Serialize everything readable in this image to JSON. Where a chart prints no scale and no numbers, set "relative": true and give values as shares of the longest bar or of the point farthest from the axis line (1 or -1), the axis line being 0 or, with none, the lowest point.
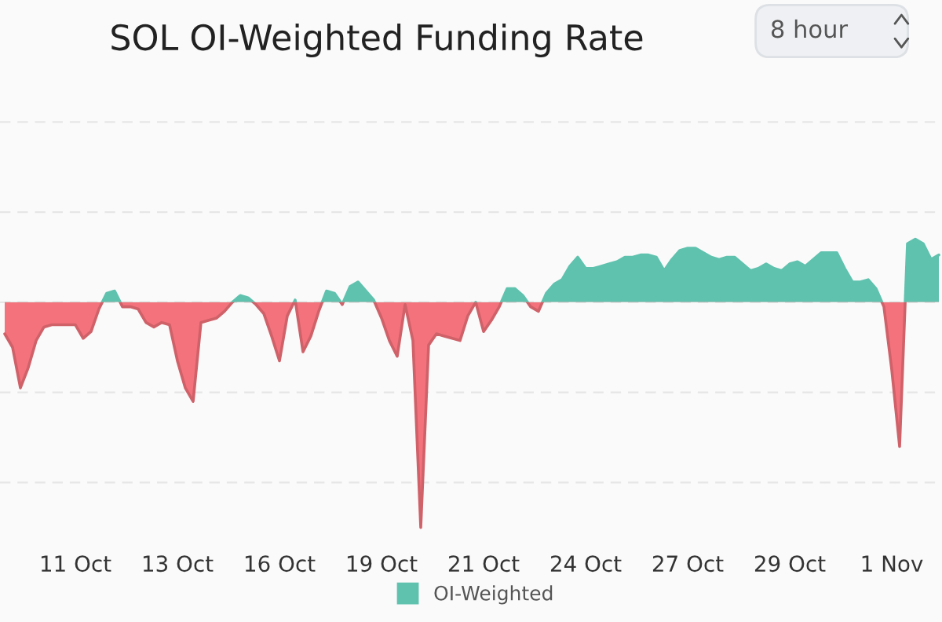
{
  "chart_data": {
    "type": "area",
    "title": "SOL OI-Weighted Funding Rate",
    "annotations": [
      "8 hour"
    ],
    "relative": true,
    "grid": "y",
    "legend": "bottom",
    "categories": [
      null,
      null,
      null,
      null,
      null,
      null,
      null,
      null,
      null,
      "11 Oct",
      null,
      null,
      null,
      null,
      null,
      null,
      null,
      null,
      null,
      null,
      null,
      null,
      "13 Oct",
      null,
      null,
      null,
      null,
      null,
      null,
      null,
      null,
      null,
      null,
      null,
      null,
      "16 Oct",
      null,
      null,
      null,
      null,
      null,
      null,
      null,
      null,
      null,
      null,
      null,
      null,
      "19 Oct",
      null,
      null,
      null,
      null,
      null,
      null,
      null,
      null,
      null,
      null,
      null,
      null,
      "21 Oct",
      null,
      null,
      null,
      null,
      null,
      null,
      null,
      null,
      null,
      null,
      null,
      null,
      "24 Oct",
      null,
      null,
      null,
      null,
      null,
      null,
      null,
      null,
      null,
      null,
      null,
      null,
      "27 Oct",
      null,
      null,
      null,
      null,
      null,
      null,
      null,
      null,
      null,
      null,
      null,
      null,
      "29 Oct",
      null,
      null,
      null,
      null,
      null,
      null,
      null,
      null,
      null,
      null,
      null,
      null,
      "1 Nov",
      null,
      null,
      null,
      null,
      null,
      null
    ],
    "series": [
      {
        "name": "OI-Weighted",
        "color": "#5fc2ae",
        "values": [
          -0.14,
          -0.2,
          -0.38,
          -0.29,
          -0.17,
          -0.11,
          -0.1,
          -0.1,
          -0.1,
          -0.1,
          -0.16,
          -0.13,
          -0.03,
          0.04,
          0.05,
          -0.02,
          -0.02,
          -0.03,
          -0.09,
          -0.11,
          -0.09,
          -0.1,
          -0.26,
          -0.38,
          -0.44,
          -0.09,
          -0.08,
          -0.07,
          -0.04,
          0,
          0.03,
          0.02,
          -0.01,
          -0.05,
          -0.15,
          -0.26,
          -0.06,
          0.01,
          -0.22,
          -0.15,
          -0.04,
          0.05,
          0.04,
          -0.01,
          0.07,
          0.09,
          0.05,
          0.01,
          -0.07,
          -0.17,
          -0.24,
          -0.01,
          -0.17,
          -1.0,
          -0.19,
          -0.14,
          -0.15,
          -0.16,
          -0.17,
          -0.06,
          0,
          -0.13,
          -0.08,
          -0.02,
          0.06,
          0.06,
          0.03,
          -0.02,
          -0.04,
          0.04,
          0.08,
          0.1,
          0.16,
          0.2,
          0.15,
          0.15,
          0.16,
          0.17,
          0.18,
          0.2,
          0.2,
          0.21,
          0.21,
          0.2,
          0.14,
          0.19,
          0.23,
          0.24,
          0.24,
          0.22,
          0.2,
          0.19,
          0.2,
          0.2,
          0.17,
          0.14,
          0.15,
          0.17,
          0.15,
          0.14,
          0.17,
          0.18,
          0.16,
          0.19,
          0.22,
          0.22,
          0.22,
          0.15,
          0.09,
          0.09,
          0.1,
          0.06,
          -0.02,
          -0.3,
          -0.64,
          0.26,
          0.28,
          0.26,
          0.19,
          0.21
        ],
        "colors": [
          "#f4727b",
          "#f4727b",
          "#f4727b",
          "#f4727b",
          "#f4727b",
          "#f4727b",
          "#f4727b",
          "#f4727b",
          "#f4727b",
          "#f4727b",
          "#f4727b",
          "#f4727b",
          "#f4727b",
          "#5fc2ae",
          "#5fc2ae",
          "#f4727b",
          "#f4727b",
          "#f4727b",
          "#f4727b",
          "#f4727b",
          "#f4727b",
          "#f4727b",
          "#f4727b",
          "#f4727b",
          "#f4727b",
          "#f4727b",
          "#f4727b",
          "#f4727b",
          "#f4727b",
          "#5fc2ae",
          "#5fc2ae",
          "#5fc2ae",
          "#f4727b",
          "#f4727b",
          "#f4727b",
          "#f4727b",
          "#f4727b",
          "#5fc2ae",
          "#f4727b",
          "#f4727b",
          "#f4727b",
          "#5fc2ae",
          "#5fc2ae",
          "#f4727b",
          "#5fc2ae",
          "#5fc2ae",
          "#5fc2ae",
          "#5fc2ae",
          "#f4727b",
          "#f4727b",
          "#f4727b",
          "#f4727b",
          "#f4727b",
          "#f4727b",
          "#f4727b",
          "#f4727b",
          "#f4727b",
          "#f4727b",
          "#f4727b",
          "#f4727b",
          "#5fc2ae",
          "#f4727b",
          "#f4727b",
          "#f4727b",
          "#5fc2ae",
          "#5fc2ae",
          "#5fc2ae",
          "#f4727b",
          "#f4727b",
          "#5fc2ae",
          "#5fc2ae",
          "#5fc2ae",
          "#5fc2ae",
          "#5fc2ae",
          "#5fc2ae",
          "#5fc2ae",
          "#5fc2ae",
          "#5fc2ae",
          "#5fc2ae",
          "#5fc2ae",
          "#5fc2ae",
          "#5fc2ae",
          "#5fc2ae",
          "#5fc2ae",
          "#5fc2ae",
          "#5fc2ae",
          "#5fc2ae",
          "#5fc2ae",
          "#5fc2ae",
          "#5fc2ae",
          "#5fc2ae",
          "#5fc2ae",
          "#5fc2ae",
          "#5fc2ae",
          "#5fc2ae",
          "#5fc2ae",
          "#5fc2ae",
          "#5fc2ae",
          "#5fc2ae",
          "#5fc2ae",
          "#5fc2ae",
          "#5fc2ae",
          "#5fc2ae",
          "#5fc2ae",
          "#5fc2ae",
          "#5fc2ae",
          "#5fc2ae",
          "#5fc2ae",
          "#5fc2ae",
          "#5fc2ae",
          "#5fc2ae",
          "#5fc2ae",
          "#f4727b",
          "#f4727b",
          "#f4727b",
          "#5fc2ae",
          "#5fc2ae",
          "#5fc2ae",
          "#5fc2ae",
          "#5fc2ae"
        ]
      }
    ]
  }
}
